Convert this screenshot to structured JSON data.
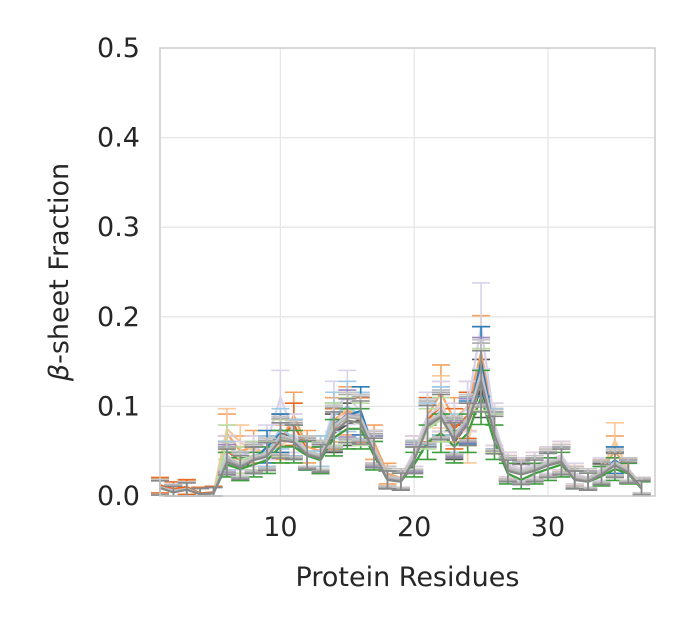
{
  "chart_data": {
    "type": "line",
    "title": "",
    "xlabel": "Protein Residues",
    "ylabel_symbol": "β",
    "ylabel_rest": "-sheet Fraction",
    "xlim": [
      1,
      38
    ],
    "ylim": [
      0,
      0.5
    ],
    "xticks": [
      10,
      20,
      30
    ],
    "xtick_labels": [
      "10",
      "20",
      "30"
    ],
    "yticks": [
      0,
      0.1,
      0.2,
      0.3,
      0.4,
      0.5
    ],
    "ytick_labels": [
      "0.0",
      "0.1",
      "0.2",
      "0.3",
      "0.4",
      "0.5"
    ],
    "grid": true,
    "legend": "none",
    "x": [
      1,
      2,
      3,
      4,
      5,
      6,
      7,
      8,
      9,
      10,
      11,
      12,
      13,
      14,
      15,
      16,
      17,
      18,
      19,
      20,
      21,
      22,
      23,
      24,
      25,
      26,
      27,
      28,
      29,
      30,
      31,
      32,
      33,
      34,
      35,
      36,
      37
    ],
    "series": [
      {
        "color": "#555555",
        "values": [
          0.01,
          0.005,
          0.008,
          0.002,
          0.003,
          0.045,
          0.03,
          0.04,
          0.05,
          0.07,
          0.065,
          0.05,
          0.04,
          0.07,
          0.08,
          0.085,
          0.05,
          0.02,
          0.018,
          0.04,
          0.08,
          0.095,
          0.06,
          0.08,
          0.12,
          0.07,
          0.03,
          0.025,
          0.03,
          0.035,
          0.04,
          0.02,
          0.018,
          0.025,
          0.035,
          0.03,
          0.01
        ]
      },
      {
        "color": "#f4a362",
        "values": [
          0.012,
          0.006,
          0.01,
          0.003,
          0.004,
          0.07,
          0.05,
          0.055,
          0.045,
          0.06,
          0.09,
          0.055,
          0.05,
          0.085,
          0.095,
          0.09,
          0.06,
          0.025,
          0.02,
          0.05,
          0.09,
          0.115,
          0.085,
          0.1,
          0.16,
          0.08,
          0.035,
          0.03,
          0.035,
          0.04,
          0.045,
          0.025,
          0.02,
          0.03,
          0.05,
          0.03,
          0.012
        ]
      },
      {
        "color": "#f9c89b",
        "values": [
          0.011,
          0.006,
          0.009,
          0.002,
          0.004,
          0.075,
          0.06,
          0.05,
          0.05,
          0.055,
          0.07,
          0.05,
          0.045,
          0.08,
          0.1,
          0.085,
          0.055,
          0.022,
          0.02,
          0.045,
          0.085,
          0.105,
          0.07,
          0.055,
          0.14,
          0.075,
          0.032,
          0.028,
          0.03,
          0.038,
          0.042,
          0.022,
          0.02,
          0.028,
          0.062,
          0.028,
          0.011
        ]
      },
      {
        "color": "#e8691f",
        "values": [
          0.012,
          0.008,
          0.01,
          0.003,
          0.004,
          0.05,
          0.04,
          0.045,
          0.05,
          0.065,
          0.08,
          0.05,
          0.045,
          0.075,
          0.09,
          0.085,
          0.055,
          0.022,
          0.02,
          0.045,
          0.085,
          0.1,
          0.075,
          0.09,
          0.15,
          0.075,
          0.032,
          0.028,
          0.03,
          0.036,
          0.042,
          0.022,
          0.02,
          0.028,
          0.04,
          0.03,
          0.01
        ]
      },
      {
        "color": "#d9d2ea",
        "values": [
          0.01,
          0.006,
          0.008,
          0.002,
          0.003,
          0.05,
          0.045,
          0.05,
          0.06,
          0.11,
          0.07,
          0.05,
          0.045,
          0.1,
          0.11,
          0.095,
          0.055,
          0.022,
          0.02,
          0.05,
          0.09,
          0.1,
          0.08,
          0.1,
          0.19,
          0.08,
          0.035,
          0.03,
          0.035,
          0.04,
          0.045,
          0.025,
          0.02,
          0.03,
          0.04,
          0.03,
          0.012
        ]
      },
      {
        "color": "#9ecbe8",
        "values": [
          0.01,
          0.005,
          0.008,
          0.002,
          0.003,
          0.045,
          0.035,
          0.045,
          0.05,
          0.075,
          0.065,
          0.05,
          0.05,
          0.09,
          0.1,
          0.09,
          0.052,
          0.02,
          0.018,
          0.045,
          0.08,
          0.095,
          0.07,
          0.085,
          0.15,
          0.075,
          0.03,
          0.026,
          0.03,
          0.036,
          0.04,
          0.02,
          0.018,
          0.026,
          0.038,
          0.028,
          0.01
        ]
      },
      {
        "color": "#2e7fb8",
        "values": [
          0.01,
          0.005,
          0.008,
          0.002,
          0.003,
          0.04,
          0.035,
          0.04,
          0.055,
          0.07,
          0.06,
          0.045,
          0.045,
          0.08,
          0.09,
          0.095,
          0.05,
          0.02,
          0.018,
          0.042,
          0.078,
          0.09,
          0.068,
          0.082,
          0.15,
          0.072,
          0.03,
          0.026,
          0.03,
          0.036,
          0.04,
          0.02,
          0.018,
          0.026,
          0.04,
          0.028,
          0.01
        ]
      },
      {
        "color": "#3d9e3d",
        "values": [
          0.01,
          0.005,
          0.008,
          0.002,
          0.003,
          0.035,
          0.03,
          0.035,
          0.04,
          0.055,
          0.055,
          0.045,
          0.04,
          0.065,
          0.075,
          0.075,
          0.045,
          0.018,
          0.016,
          0.035,
          0.06,
          0.07,
          0.055,
          0.07,
          0.11,
          0.06,
          0.025,
          0.018,
          0.025,
          0.03,
          0.035,
          0.018,
          0.016,
          0.022,
          0.03,
          0.025,
          0.008
        ]
      },
      {
        "color": "#b8dca0",
        "values": [
          0.01,
          0.005,
          0.008,
          0.002,
          0.003,
          0.06,
          0.04,
          0.045,
          0.045,
          0.065,
          0.06,
          0.05,
          0.045,
          0.08,
          0.085,
          0.08,
          0.05,
          0.02,
          0.018,
          0.04,
          0.075,
          0.085,
          0.065,
          0.08,
          0.13,
          0.07,
          0.03,
          0.026,
          0.03,
          0.036,
          0.04,
          0.02,
          0.018,
          0.026,
          0.036,
          0.028,
          0.01
        ]
      },
      {
        "color": "#9b8cc4",
        "values": [
          0.01,
          0.005,
          0.008,
          0.002,
          0.003,
          0.042,
          0.032,
          0.042,
          0.048,
          0.068,
          0.062,
          0.048,
          0.042,
          0.078,
          0.092,
          0.088,
          0.05,
          0.02,
          0.018,
          0.042,
          0.078,
          0.092,
          0.064,
          0.084,
          0.14,
          0.072,
          0.03,
          0.026,
          0.03,
          0.036,
          0.04,
          0.02,
          0.018,
          0.026,
          0.036,
          0.028,
          0.01
        ]
      },
      {
        "color": "#aaaaaa",
        "values": [
          0.01,
          0.005,
          0.008,
          0.002,
          0.003,
          0.04,
          0.035,
          0.042,
          0.046,
          0.066,
          0.062,
          0.048,
          0.044,
          0.076,
          0.088,
          0.086,
          0.052,
          0.02,
          0.018,
          0.044,
          0.082,
          0.09,
          0.066,
          0.086,
          0.135,
          0.072,
          0.03,
          0.026,
          0.03,
          0.036,
          0.04,
          0.02,
          0.018,
          0.026,
          0.036,
          0.028,
          0.01
        ]
      },
      {
        "color": "#c4c4c4",
        "values": [
          0.01,
          0.005,
          0.008,
          0.002,
          0.003,
          0.044,
          0.036,
          0.044,
          0.048,
          0.068,
          0.064,
          0.05,
          0.046,
          0.078,
          0.09,
          0.088,
          0.054,
          0.022,
          0.02,
          0.046,
          0.084,
          0.092,
          0.068,
          0.088,
          0.138,
          0.074,
          0.032,
          0.028,
          0.032,
          0.038,
          0.042,
          0.022,
          0.02,
          0.028,
          0.038,
          0.03,
          0.012
        ]
      },
      {
        "color": "#888888",
        "values": [
          0.009,
          0.004,
          0.007,
          0.002,
          0.003,
          0.038,
          0.032,
          0.04,
          0.044,
          0.062,
          0.06,
          0.046,
          0.042,
          0.072,
          0.084,
          0.082,
          0.048,
          0.018,
          0.016,
          0.04,
          0.078,
          0.088,
          0.062,
          0.08,
          0.128,
          0.068,
          0.028,
          0.024,
          0.028,
          0.034,
          0.038,
          0.018,
          0.016,
          0.024,
          0.034,
          0.026,
          0.009
        ]
      }
    ]
  }
}
